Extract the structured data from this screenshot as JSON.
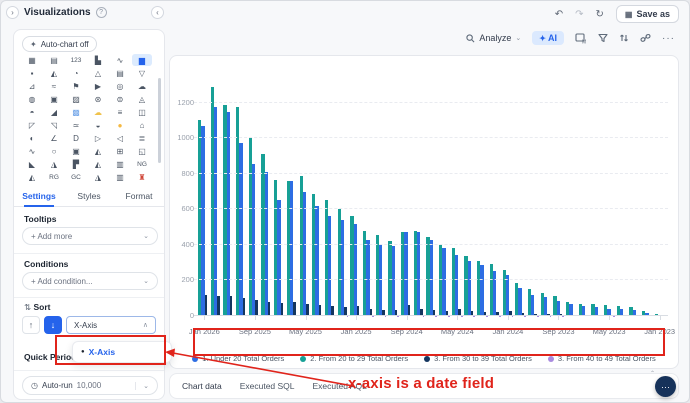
{
  "header": {
    "title": "Visualizations",
    "help_icon": "?",
    "collapse_left_icon": "›",
    "collapse_right_icon": "‹",
    "undo_icon": "↶",
    "redo_icon": "↷",
    "refresh_icon": "↻",
    "save_as_icon": "▦",
    "save_as_label": "Save as"
  },
  "left_panel": {
    "auto_chart_icon": "✦",
    "auto_chart_label": "Auto-chart off",
    "icon_rows": [
      [
        {
          "g": "▦"
        },
        {
          "g": "▤"
        },
        {
          "g": "123"
        },
        {
          "g": "▙"
        },
        {
          "g": "∿"
        },
        {
          "g": "▆",
          "sel": true
        }
      ],
      [
        {
          "g": "▪"
        },
        {
          "g": "◭"
        },
        {
          "g": "◔"
        },
        {
          "g": "△"
        },
        {
          "g": "▤"
        },
        {
          "g": "▽"
        }
      ],
      [
        {
          "g": "⊿"
        },
        {
          "g": "≈"
        },
        {
          "g": "⚑"
        },
        {
          "g": "▶"
        },
        {
          "g": "◎"
        },
        {
          "g": "☁"
        }
      ],
      [
        {
          "g": "◍"
        },
        {
          "g": "▣"
        },
        {
          "g": "▨"
        },
        {
          "g": "⊛"
        },
        {
          "g": "⊜"
        },
        {
          "g": "◬"
        }
      ],
      [
        {
          "g": "◓"
        },
        {
          "g": "◢"
        },
        {
          "g": "▩",
          "c": "#6ea3e8"
        },
        {
          "g": "☁",
          "c": "#f0c24b"
        },
        {
          "g": "≡"
        },
        {
          "g": "◫"
        }
      ],
      [
        {
          "g": "◸"
        },
        {
          "g": "◹"
        },
        {
          "g": "≃"
        },
        {
          "g": "◒"
        },
        {
          "g": "●",
          "c": "#f5b942"
        },
        {
          "g": "⌂"
        }
      ],
      [
        {
          "g": "◐"
        },
        {
          "g": "∠"
        },
        {
          "g": "D"
        },
        {
          "g": "▷"
        },
        {
          "g": "◁"
        },
        {
          "g": "≣"
        }
      ],
      [
        {
          "g": "∿"
        },
        {
          "g": "○"
        },
        {
          "g": "▣"
        },
        {
          "g": "◭"
        },
        {
          "g": "⊞"
        },
        {
          "g": "◱"
        }
      ],
      [
        {
          "g": "◣"
        },
        {
          "g": "◮"
        },
        {
          "g": "▛"
        },
        {
          "g": "◭"
        },
        {
          "g": "▥"
        },
        {
          "g": "NG"
        }
      ],
      [
        {
          "g": "◭"
        },
        {
          "g": "RG"
        },
        {
          "g": "GC"
        },
        {
          "g": "◮"
        },
        {
          "g": "▥"
        },
        {
          "g": "♜",
          "c": "#cf4436"
        }
      ],
      [
        {
          "g": "▂"
        },
        {
          "g": "▂"
        },
        {
          "g": "▂"
        },
        {
          "g": "▂"
        },
        {
          "g": "▂"
        },
        {
          "g": "▂"
        }
      ]
    ],
    "tabs": [
      {
        "label": "Settings",
        "active": true
      },
      {
        "label": "Styles",
        "active": false
      },
      {
        "label": "Format",
        "active": false
      }
    ],
    "tooltips": {
      "title": "Tooltips",
      "add_label": "+  Add more",
      "chevron": "⌄"
    },
    "conditions": {
      "title": "Conditions",
      "add_label": "+  Add condition...",
      "chevron": "⌄"
    },
    "sort": {
      "title": "Sort",
      "icon": "⇅",
      "asc_icon": "↑",
      "desc_icon": "↓",
      "select_value": "X-Axis",
      "select_chevron": "∧",
      "dropdown_bullet": "●",
      "dropdown_option": "X-Axis"
    },
    "quick_period": {
      "title": "Quick Period"
    },
    "auto_run": {
      "icon": "◷",
      "label": "Auto-run",
      "value": "10,000",
      "chevron": "⌄"
    }
  },
  "toolbar": {
    "analyze_label": "Analyze",
    "analyze_chevron": "⌄",
    "ai_icon": "✦",
    "ai_label": "AI",
    "more_icon": "···"
  },
  "chart_data": {
    "type": "bar",
    "title": "",
    "x_order": "dates descending left to right",
    "x": [
      "Jan 2026",
      "Dec 2025",
      "Nov 2025",
      "Oct 2025",
      "Sep 2025",
      "Aug 2025",
      "Jul 2025",
      "Jun 2025",
      "May 2025",
      "Apr 2025",
      "Mar 2025",
      "Feb 2025",
      "Jan 2025",
      "Dec 2024",
      "Nov 2024",
      "Oct 2024",
      "Sep 2024",
      "Aug 2024",
      "Jul 2024",
      "Jun 2024",
      "May 2024",
      "Apr 2024",
      "Mar 2024",
      "Feb 2024",
      "Jan 2024",
      "Dec 2023",
      "Nov 2023",
      "Oct 2023",
      "Sep 2023",
      "Aug 2023",
      "Jul 2023",
      "Jun 2023",
      "May 2023",
      "Apr 2023",
      "Mar 2023",
      "Feb 2023",
      "Jan 2023"
    ],
    "series": [
      {
        "name": "1. Under 20 Total Orders",
        "color": "#2d6de3",
        "values": [
          1070,
          1175,
          1145,
          975,
          855,
          810,
          655,
          757,
          700,
          620,
          560,
          540,
          520,
          430,
          400,
          395,
          475,
          470,
          430,
          380,
          345,
          310,
          285,
          255,
          230,
          160,
          120,
          105,
          85,
          65,
          55,
          48,
          42,
          38,
          32,
          18,
          5
        ]
      },
      {
        "name": "2. From 20 to 29 Total Orders",
        "color": "#17a096",
        "values": [
          1103,
          1290,
          1185,
          1175,
          1000,
          910,
          765,
          760,
          790,
          685,
          655,
          600,
          560,
          480,
          455,
          420,
          470,
          480,
          445,
          400,
          380,
          340,
          310,
          290,
          260,
          185,
          150,
          130,
          110,
          80,
          70,
          65,
          60,
          55,
          50,
          30,
          12
        ]
      },
      {
        "name": "3. From 30 to 39 Total Orders",
        "color": "#14365f",
        "values": [
          120,
          110,
          112,
          100,
          88,
          80,
          75,
          78,
          65,
          60,
          58,
          52,
          55,
          40,
          35,
          32,
          60,
          40,
          35,
          30,
          42,
          28,
          25,
          22,
          30,
          18,
          12,
          10,
          12,
          8,
          6,
          5,
          8,
          5,
          4,
          3,
          0
        ]
      },
      {
        "name": "3. From 40 to 49 Total Orders",
        "color": "#a98bdf",
        "values": [
          8,
          6,
          7,
          5,
          5,
          4,
          4,
          4,
          3,
          3,
          3,
          2,
          3,
          2,
          2,
          2,
          3,
          2,
          2,
          1,
          2,
          1,
          1,
          1,
          2,
          1,
          1,
          1,
          1,
          0,
          0,
          0,
          1,
          0,
          0,
          0,
          0
        ]
      }
    ],
    "draw_order": [
      1,
      0,
      2,
      3
    ],
    "yticks": [
      0,
      200,
      400,
      600,
      800,
      1000,
      1200
    ],
    "ylim": [
      0,
      1350
    ],
    "x_tick_indices": [
      0,
      4,
      8,
      12,
      16,
      20,
      24,
      28,
      32,
      36
    ],
    "x_tick_labels": [
      "Jan 2026",
      "Sep 2025",
      "May 2025",
      "Jan 2025",
      "Sep 2024",
      "May 2024",
      "Jan 2024",
      "Sep 2023",
      "May 2023",
      "Jan 2023"
    ],
    "grid": "horizontal-dashed",
    "legend_position": "bottom"
  },
  "bottom_tabs": [
    {
      "label": "Chart data"
    },
    {
      "label": "Executed SQL"
    },
    {
      "label": "Executed AQL"
    }
  ],
  "annotation": {
    "text": "x-axis is a date field",
    "color": "#e0241b"
  },
  "chat": {
    "icon": "···"
  }
}
